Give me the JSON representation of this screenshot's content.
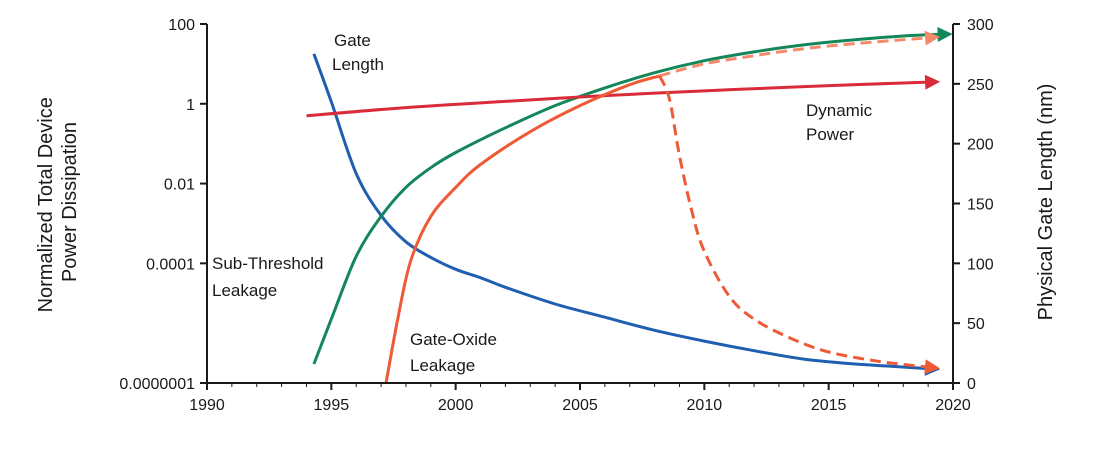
{
  "chart_data": {
    "type": "line",
    "title": "",
    "xlabel": "",
    "ylabel_left": [
      "Normalized Total Device",
      "Power Dissipation"
    ],
    "ylabel_right": "Physical Gate Length (nm)",
    "xlim": [
      1990,
      2020
    ],
    "ylim_left": [
      1e-07,
      100
    ],
    "ylim_left_scale": "log",
    "ylim_right": [
      0,
      300
    ],
    "x_ticks": [
      "1990",
      "1995",
      "2000",
      "2005",
      "2010",
      "2015",
      "2020"
    ],
    "y_left_ticks": [
      "100",
      "1",
      "0.01",
      "0.0001",
      "0.0000001"
    ],
    "y_left_tick_values": [
      100,
      1,
      0.01,
      0.0001,
      1e-07
    ],
    "y_right_ticks": [
      "300",
      "250",
      "200",
      "150",
      "100",
      "50",
      "0"
    ],
    "y_right_tick_values": [
      300,
      250,
      200,
      150,
      100,
      50,
      0
    ],
    "grid": false,
    "colors": {
      "gate_length": "#1f5fb0",
      "sub_threshold": "#13875a",
      "dynamic": "#d92b3a",
      "gate_oxide": "#ee5a36",
      "projection": "#f48a6a"
    },
    "series": [
      {
        "name": "Gate Length",
        "label_lines": [
          "Gate",
          "Length"
        ],
        "axis": "right",
        "color_key": "gate_length",
        "style": "solid",
        "arrow": true,
        "x": [
          1994.3,
          1995,
          1996,
          1997,
          1998,
          1999,
          2000,
          2001,
          2002,
          2004,
          2006,
          2008,
          2010,
          2012,
          2014,
          2016,
          2017.5,
          2019
        ],
        "y": [
          275,
          235,
          175,
          140,
          118,
          105,
          95,
          88,
          80,
          66,
          55,
          44,
          35,
          27,
          20,
          16,
          14,
          12
        ]
      },
      {
        "name": "Sub-Threshold Leakage",
        "label_lines": [
          "Sub-Threshold",
          "Leakage"
        ],
        "axis": "left",
        "color_key": "sub_threshold",
        "style": "solid",
        "arrow": true,
        "x": [
          1994.3,
          1995,
          1996,
          1997,
          1998,
          1999,
          2000,
          2002,
          2004,
          2006,
          2008,
          2010,
          2012,
          2014,
          2016,
          2018,
          2019.5
        ],
        "y": [
          3e-07,
          4e-06,
          0.00015,
          0.0015,
          0.008,
          0.025,
          0.06,
          0.25,
          0.9,
          2.5,
          6,
          12,
          20,
          30,
          40,
          50,
          55
        ]
      },
      {
        "name": "Dynamic Power",
        "label_lines": [
          "Dynamic",
          "Power"
        ],
        "axis": "left",
        "color_key": "dynamic",
        "style": "solid",
        "arrow": true,
        "x": [
          1994,
          1998,
          2002,
          2006,
          2010,
          2014,
          2019
        ],
        "y": [
          0.5,
          0.8,
          1.15,
          1.6,
          2.1,
          2.7,
          3.5
        ]
      },
      {
        "name": "Gate-Oxide Leakage",
        "label_lines": [
          "Gate-Oxide",
          "Leakage"
        ],
        "axis": "left",
        "color_key": "gate_oxide",
        "style": "solid",
        "arrow": false,
        "x": [
          1997.2,
          1997.7,
          1998.2,
          1999,
          2000,
          2001,
          2003,
          2005,
          2007,
          2008.2
        ],
        "y": [
          1e-07,
          5e-06,
          0.00012,
          0.0015,
          0.008,
          0.03,
          0.2,
          0.9,
          3,
          5
        ]
      },
      {
        "name": "Gate-Oxide Leakage projection (high)",
        "axis": "left",
        "color_key": "projection",
        "style": "dashed",
        "arrow": true,
        "x": [
          2008.2,
          2010,
          2012,
          2014,
          2016,
          2019
        ],
        "y": [
          5,
          10,
          16,
          24,
          32,
          45
        ]
      },
      {
        "name": "Gate-Oxide Leakage projection (low)",
        "axis": "left",
        "color_key": "gate_oxide",
        "style": "dashed",
        "arrow": true,
        "x": [
          2008.2,
          2008.6,
          2009,
          2009.5,
          2010,
          2011,
          2012,
          2013.5,
          2015,
          2017,
          2019
        ],
        "y": [
          5,
          1.3,
          0.05,
          0.002,
          0.0002,
          1.5e-05,
          4e-06,
          1.3e-06,
          6e-07,
          3.5e-07,
          2.5e-07
        ]
      }
    ]
  }
}
